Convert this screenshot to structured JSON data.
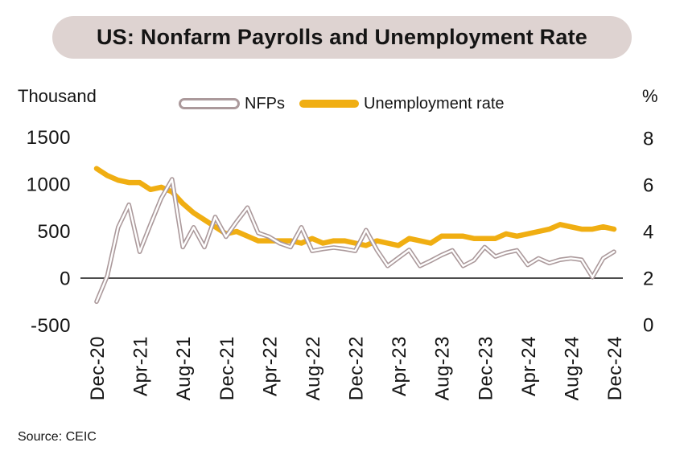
{
  "title": "US: Nonfarm Payrolls and Unemployment Rate",
  "source": "Source: CEIC",
  "legend": {
    "nfp_label": "NFPs",
    "unemployment_label": "Unemployment rate"
  },
  "colors": {
    "nfp_line": "#ab999b",
    "nfp_line_inner": "#ffffff",
    "unemployment_line": "#f0ae12",
    "badge_bg": "#ded3d1",
    "axis_line": "#4d4d4d",
    "text": "#141414"
  },
  "chart_data": {
    "type": "line",
    "title": "US: Nonfarm Payrolls and Unemployment Rate",
    "grid": false,
    "legend_position": "top",
    "left_axis": {
      "title": "Thousand",
      "ticks": [
        1500,
        1000,
        500,
        0,
        -500
      ],
      "range": [
        -750,
        1700
      ]
    },
    "right_axis": {
      "title": "%",
      "ticks": [
        8,
        6,
        4,
        2,
        0
      ],
      "range": [
        -1,
        8.8
      ]
    },
    "x_tick_labels": [
      "Dec-20",
      "Apr-21",
      "Aug-21",
      "Dec-21",
      "Apr-22",
      "Aug-22",
      "Dec-22",
      "Apr-23",
      "Aug-23",
      "Dec-23",
      "Apr-24",
      "Aug-24",
      "Dec-24"
    ],
    "months": [
      "Dec-20",
      "Jan-21",
      "Feb-21",
      "Mar-21",
      "Apr-21",
      "May-21",
      "Jun-21",
      "Jul-21",
      "Aug-21",
      "Sep-21",
      "Oct-21",
      "Nov-21",
      "Dec-21",
      "Jan-22",
      "Feb-22",
      "Mar-22",
      "Apr-22",
      "May-22",
      "Jun-22",
      "Jul-22",
      "Aug-22",
      "Sep-22",
      "Oct-22",
      "Nov-22",
      "Dec-22",
      "Jan-23",
      "Feb-23",
      "Mar-23",
      "Apr-23",
      "May-23",
      "Jun-23",
      "Jul-23",
      "Aug-23",
      "Sep-23",
      "Oct-23",
      "Nov-23",
      "Dec-23",
      "Jan-24",
      "Feb-24",
      "Mar-24",
      "Apr-24",
      "May-24",
      "Jun-24",
      "Jul-24",
      "Aug-24",
      "Sep-24",
      "Oct-24",
      "Nov-24",
      "Dec-24"
    ],
    "series": [
      {
        "name": "NFPs",
        "axis": "left",
        "unit": "thousand",
        "values": [
          -250,
          25,
          540,
          780,
          280,
          570,
          850,
          1050,
          330,
          540,
          330,
          650,
          440,
          600,
          750,
          480,
          440,
          370,
          330,
          540,
          290,
          310,
          325,
          310,
          290,
          510,
          300,
          130,
          215,
          300,
          130,
          185,
          245,
          295,
          130,
          190,
          330,
          230,
          270,
          295,
          140,
          210,
          160,
          195,
          210,
          195,
          10,
          210,
          280
        ]
      },
      {
        "name": "Unemployment rate",
        "axis": "right",
        "unit": "%",
        "values": [
          6.7,
          6.4,
          6.2,
          6.1,
          6.1,
          5.8,
          5.9,
          5.7,
          5.2,
          4.8,
          4.5,
          4.2,
          3.9,
          4.0,
          3.8,
          3.6,
          3.6,
          3.6,
          3.6,
          3.5,
          3.7,
          3.5,
          3.6,
          3.6,
          3.5,
          3.4,
          3.6,
          3.5,
          3.4,
          3.7,
          3.6,
          3.5,
          3.8,
          3.8,
          3.8,
          3.7,
          3.7,
          3.7,
          3.9,
          3.8,
          3.9,
          4.0,
          4.1,
          4.3,
          4.2,
          4.1,
          4.1,
          4.2,
          4.1
        ]
      }
    ]
  }
}
